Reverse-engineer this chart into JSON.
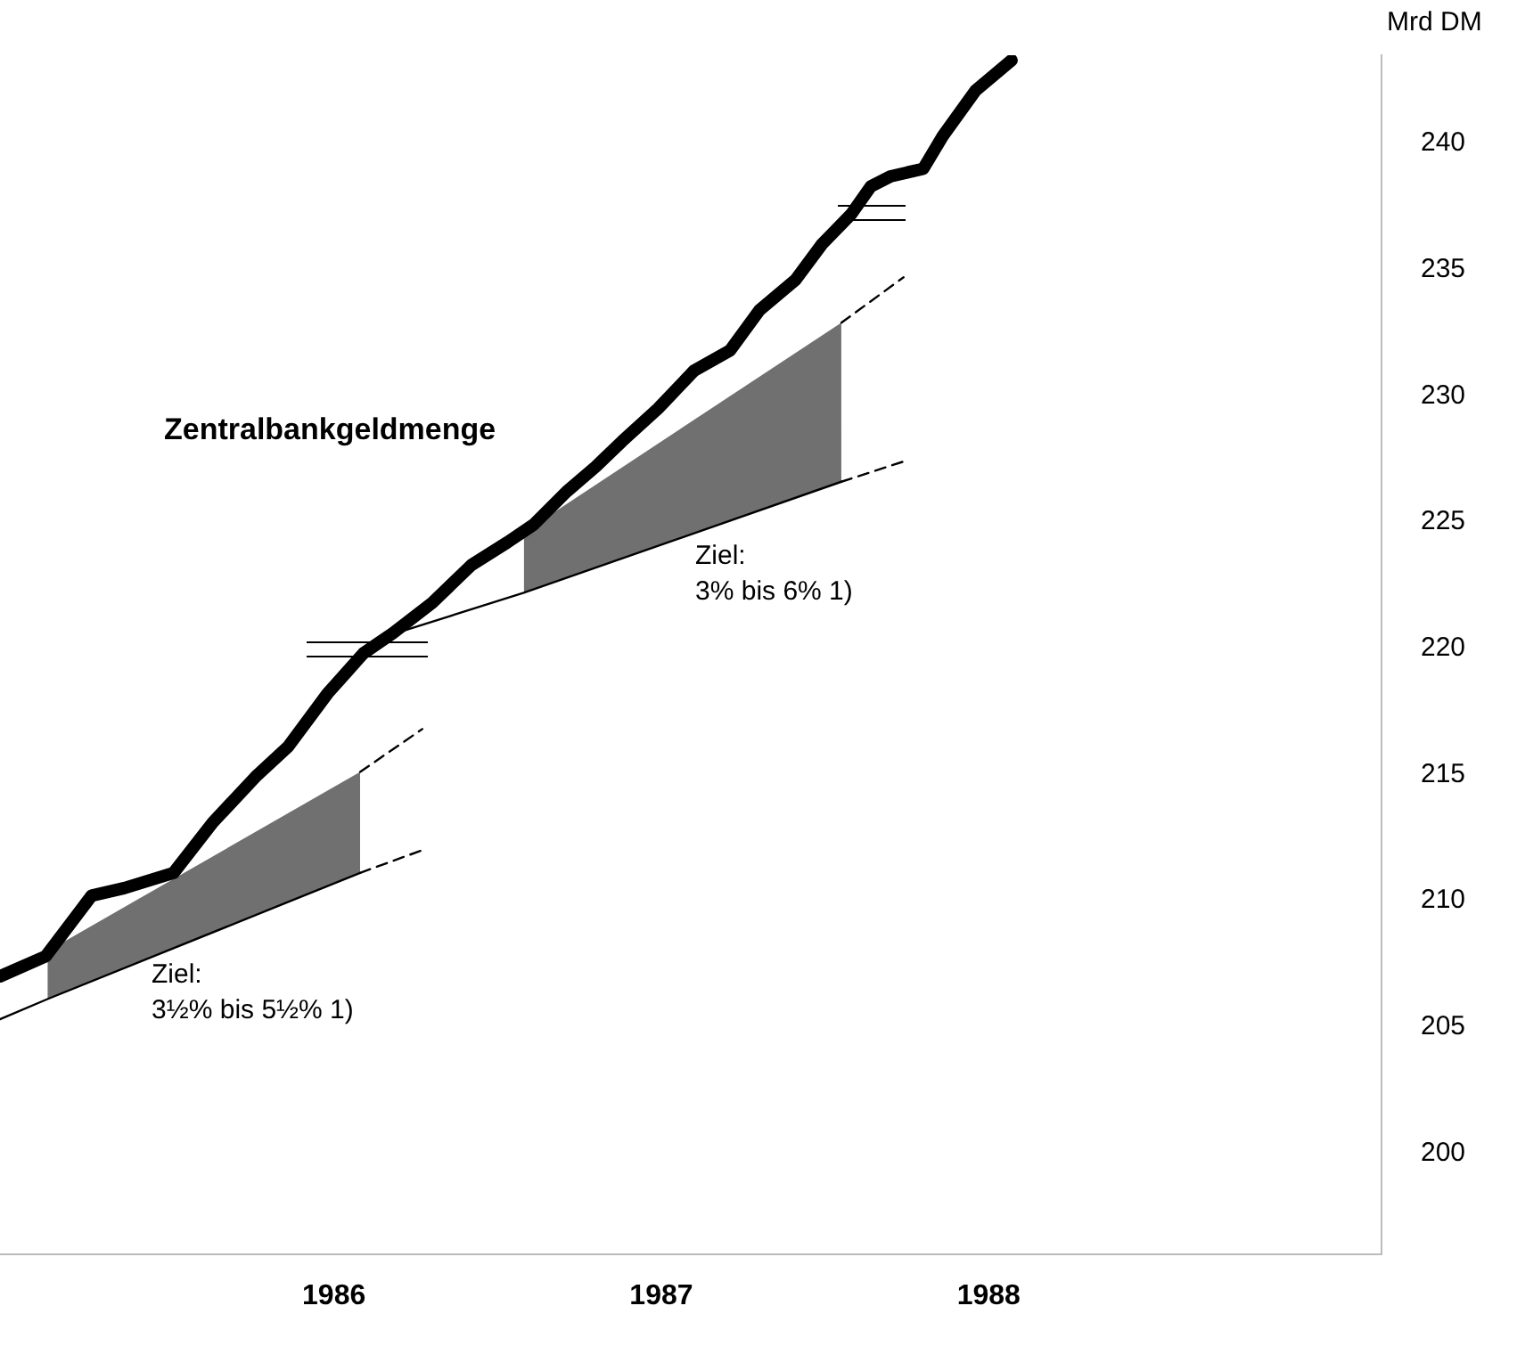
{
  "chart_data": {
    "type": "line",
    "ylabel": "Mrd DM",
    "xlim": [
      1984.98,
      1989.2
    ],
    "ylim": [
      196,
      243.5
    ],
    "xticks": [
      1986,
      1987,
      1988
    ],
    "yticks": [
      200,
      205,
      210,
      215,
      220,
      225,
      230,
      235,
      240
    ],
    "grid": false,
    "legend": false,
    "marker": "none",
    "annotations": [
      "Ziel:\n3½% bis 5½% 1)",
      "Ziel:\n3% bis 6% 1)"
    ],
    "series": [
      {
        "name": "Zentralbankgeldmenge",
        "color": "#000000",
        "line_style": "solid",
        "x": [
          1984.98,
          1985.12,
          1985.26,
          1985.36,
          1985.51,
          1985.63,
          1985.76,
          1985.86,
          1985.98,
          1986.09,
          1986.18,
          1986.3,
          1986.42,
          1986.53,
          1986.61,
          1986.71,
          1986.8,
          1986.88,
          1986.99,
          1987.1,
          1987.21,
          1987.3,
          1987.41,
          1987.49,
          1987.58,
          1987.64,
          1987.7,
          1987.8,
          1987.86,
          1987.96,
          1988.07
        ],
        "values": [
          207.0,
          207.8,
          210.2,
          210.5,
          211.1,
          213.1,
          214.9,
          216.1,
          218.2,
          219.8,
          220.6,
          221.8,
          223.3,
          224.2,
          224.9,
          226.2,
          227.2,
          228.2,
          229.5,
          231.0,
          231.8,
          233.4,
          234.6,
          236.0,
          237.2,
          238.3,
          238.7,
          239.0,
          240.3,
          242.1,
          243.3
        ]
      },
      {
        "type": "line",
        "color": "#000000",
        "line_style": "solid",
        "x": [
          1984.98,
          1985.125,
          1986.08
        ],
        "values": [
          205.3,
          206.1,
          211.1
        ],
        "lower": [
          null,
          206.1,
          211.1
        ],
        "upper": [
          null,
          208.0,
          215.1
        ]
      },
      {
        "type": "line",
        "color": "#000000",
        "line_style": "dashed",
        "x": [
          1986.08,
          1986.27
        ],
        "values": [
          211.1,
          212.0
        ]
      },
      {
        "type": "line",
        "color": "#000000",
        "line_style": "dashed",
        "x": [
          1986.08,
          1986.27
        ],
        "values": [
          215.1,
          216.8
        ]
      },
      {
        "type": "line",
        "color": "#000000",
        "line_style": "solid",
        "x": [
          1986.19,
          1986.58,
          1987.55
        ],
        "values": [
          220.6,
          222.2,
          226.6
        ],
        "lower": [
          null,
          222.2,
          226.6
        ],
        "upper": [
          null,
          224.6,
          232.9
        ]
      },
      {
        "type": "line",
        "color": "#000000",
        "line_style": "dashed",
        "x": [
          1987.55,
          1987.74
        ],
        "values": [
          226.6,
          227.4
        ]
      },
      {
        "type": "line",
        "color": "#000000",
        "line_style": "dashed",
        "x": [
          1987.55,
          1987.74
        ],
        "values": [
          232.9,
          234.7
        ]
      }
    ]
  }
}
